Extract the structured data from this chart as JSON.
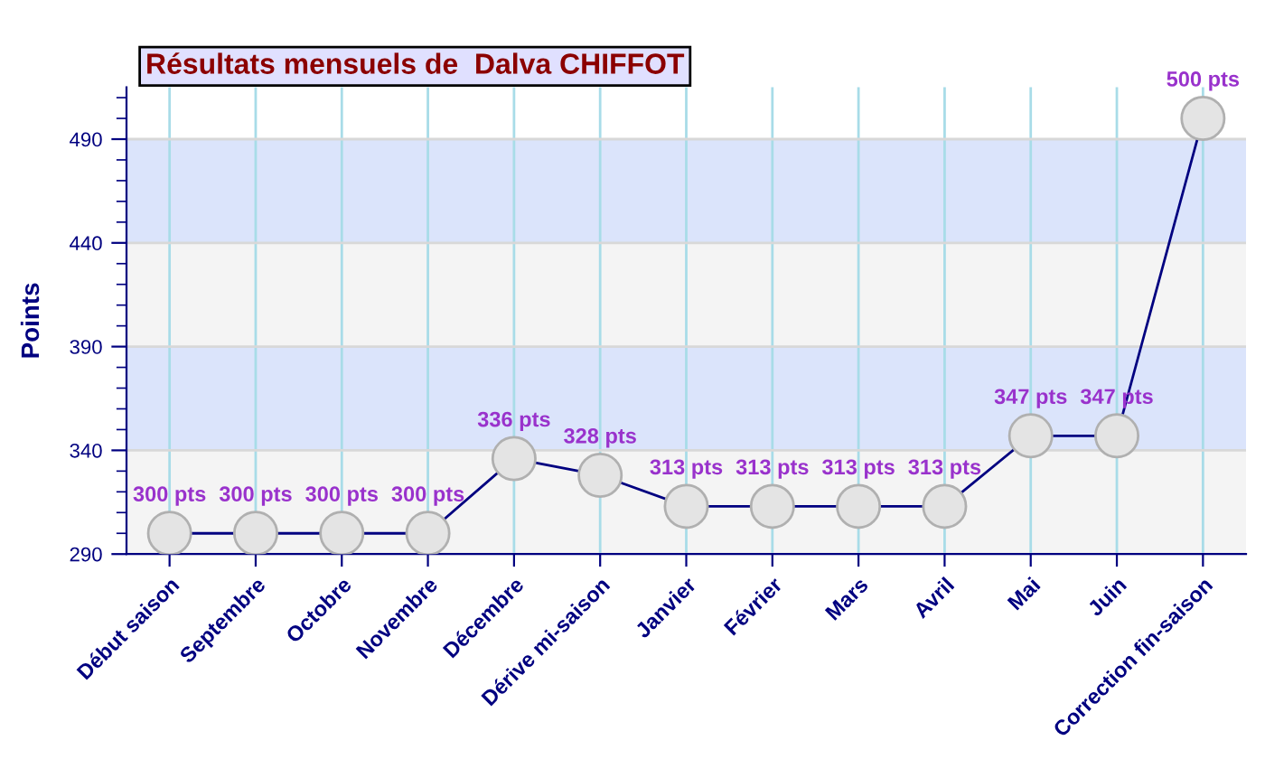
{
  "chart_data": {
    "type": "line",
    "title": "Résultats mensuels de  Dalva CHIFFOT",
    "ylabel": "Points",
    "categories": [
      "Début saison",
      "Septembre",
      "Octobre",
      "Novembre",
      "Décembre",
      "Dérive mi-saison",
      "Janvier",
      "Février",
      "Mars",
      "Avril",
      "Mai",
      "Juin",
      "Correction fin-saison"
    ],
    "series": [
      {
        "color": "#000080",
        "values": [
          300,
          300,
          300,
          300,
          336,
          328,
          313,
          313,
          313,
          313,
          347,
          347,
          500
        ],
        "value_labels": [
          "300 pts",
          "300 pts",
          "300 pts",
          "300 pts",
          "336 pts",
          "328 pts",
          "313 pts",
          "313 pts",
          "313 pts",
          "313 pts",
          "347 pts",
          "347 pts",
          "500 pts"
        ]
      }
    ],
    "ylim": [
      290,
      515
    ],
    "yticks": [
      290,
      340,
      390,
      440,
      490
    ],
    "grid": true,
    "marker": "circle",
    "line_style": "solid",
    "bands": [
      {
        "axis": "y",
        "from": 290,
        "to": 340,
        "color": "#f4f4f4"
      },
      {
        "axis": "y",
        "from": 340,
        "to": 390,
        "color": "#dbe4fb"
      },
      {
        "axis": "y",
        "from": 390,
        "to": 440,
        "color": "#f4f4f4"
      },
      {
        "axis": "y",
        "from": 440,
        "to": 490,
        "color": "#dbe4fb"
      }
    ]
  }
}
